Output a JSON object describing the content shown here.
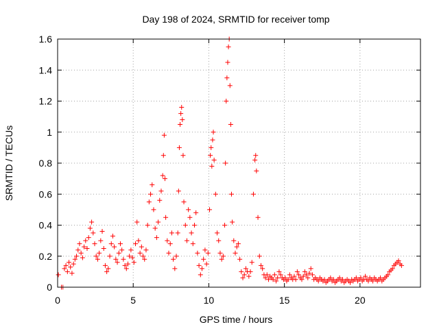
{
  "chart_data": {
    "type": "scatter",
    "title": "Day 198 of 2024, SRMTID for receiver tomp",
    "xlabel": "GPS time / hours",
    "ylabel": "SRMTID / TECUs",
    "xlim": [
      0,
      24
    ],
    "ylim": [
      0,
      1.6
    ],
    "xticks": [
      "0",
      "5",
      "10",
      "15",
      "20"
    ],
    "yticks": [
      "0",
      "0.2",
      "0.4",
      "0.6",
      "0.8",
      "1",
      "1.2",
      "1.4",
      "1.6"
    ],
    "grid": true,
    "colors": {
      "series": "#ff0000",
      "grid": "#a0a0a0",
      "frame": "#000000"
    },
    "series": [
      {
        "name": "SRMTID",
        "marker": "plus",
        "points": [
          [
            0.05,
            0.08
          ],
          [
            0.25,
            0.0
          ],
          [
            0.35,
            0.0
          ],
          [
            0.45,
            0.12
          ],
          [
            0.55,
            0.14
          ],
          [
            0.65,
            0.1
          ],
          [
            0.75,
            0.16
          ],
          [
            0.85,
            0.13
          ],
          [
            0.95,
            0.09
          ],
          [
            1.05,
            0.15
          ],
          [
            1.15,
            0.18
          ],
          [
            1.25,
            0.2
          ],
          [
            1.35,
            0.24
          ],
          [
            1.45,
            0.28
          ],
          [
            1.55,
            0.22
          ],
          [
            1.65,
            0.19
          ],
          [
            1.75,
            0.26
          ],
          [
            1.85,
            0.3
          ],
          [
            1.95,
            0.25
          ],
          [
            2.05,
            0.32
          ],
          [
            2.15,
            0.38
          ],
          [
            2.25,
            0.42
          ],
          [
            2.35,
            0.35
          ],
          [
            2.45,
            0.28
          ],
          [
            2.55,
            0.2
          ],
          [
            2.65,
            0.18
          ],
          [
            2.75,
            0.22
          ],
          [
            2.85,
            0.3
          ],
          [
            2.95,
            0.36
          ],
          [
            3.05,
            0.25
          ],
          [
            3.15,
            0.14
          ],
          [
            3.25,
            0.1
          ],
          [
            3.35,
            0.12
          ],
          [
            3.45,
            0.2
          ],
          [
            3.55,
            0.28
          ],
          [
            3.65,
            0.33
          ],
          [
            3.75,
            0.26
          ],
          [
            3.85,
            0.18
          ],
          [
            3.95,
            0.16
          ],
          [
            4.05,
            0.22
          ],
          [
            4.15,
            0.28
          ],
          [
            4.25,
            0.24
          ],
          [
            4.35,
            0.18
          ],
          [
            4.45,
            0.14
          ],
          [
            4.55,
            0.12
          ],
          [
            4.65,
            0.15
          ],
          [
            4.75,
            0.2
          ],
          [
            4.85,
            0.24
          ],
          [
            4.95,
            0.19
          ],
          [
            5.05,
            0.16
          ],
          [
            5.15,
            0.28
          ],
          [
            5.25,
            0.42
          ],
          [
            5.35,
            0.3
          ],
          [
            5.45,
            0.22
          ],
          [
            5.55,
            0.26
          ],
          [
            5.65,
            0.2
          ],
          [
            5.75,
            0.18
          ],
          [
            5.85,
            0.24
          ],
          [
            5.95,
            0.4
          ],
          [
            6.05,
            0.55
          ],
          [
            6.15,
            0.6
          ],
          [
            6.25,
            0.66
          ],
          [
            6.35,
            0.5
          ],
          [
            6.45,
            0.38
          ],
          [
            6.55,
            0.32
          ],
          [
            6.65,
            0.42
          ],
          [
            6.75,
            0.56
          ],
          [
            6.85,
            0.62
          ],
          [
            6.95,
            0.72
          ],
          [
            7.0,
            0.85
          ],
          [
            7.05,
            0.98
          ],
          [
            7.1,
            0.7
          ],
          [
            7.15,
            0.45
          ],
          [
            7.25,
            0.3
          ],
          [
            7.35,
            0.22
          ],
          [
            7.45,
            0.28
          ],
          [
            7.55,
            0.35
          ],
          [
            7.65,
            0.18
          ],
          [
            7.75,
            0.12
          ],
          [
            7.85,
            0.2
          ],
          [
            7.95,
            0.35
          ],
          [
            8.0,
            0.62
          ],
          [
            8.05,
            0.9
          ],
          [
            8.1,
            1.05
          ],
          [
            8.15,
            1.12
          ],
          [
            8.2,
            1.16
          ],
          [
            8.25,
            1.08
          ],
          [
            8.3,
            0.85
          ],
          [
            8.35,
            0.55
          ],
          [
            8.45,
            0.4
          ],
          [
            8.55,
            0.3
          ],
          [
            8.65,
            0.5
          ],
          [
            8.75,
            0.45
          ],
          [
            8.85,
            0.35
          ],
          [
            8.95,
            0.28
          ],
          [
            9.05,
            0.4
          ],
          [
            9.15,
            0.48
          ],
          [
            9.25,
            0.22
          ],
          [
            9.35,
            0.14
          ],
          [
            9.45,
            0.08
          ],
          [
            9.55,
            0.12
          ],
          [
            9.65,
            0.18
          ],
          [
            9.75,
            0.24
          ],
          [
            9.85,
            0.15
          ],
          [
            9.95,
            0.22
          ],
          [
            10.05,
            0.5
          ],
          [
            10.1,
            0.85
          ],
          [
            10.15,
            0.9
          ],
          [
            10.2,
            0.78
          ],
          [
            10.25,
            0.95
          ],
          [
            10.3,
            1.0
          ],
          [
            10.35,
            0.82
          ],
          [
            10.45,
            0.6
          ],
          [
            10.55,
            0.35
          ],
          [
            10.65,
            0.3
          ],
          [
            10.75,
            0.22
          ],
          [
            10.85,
            0.18
          ],
          [
            10.95,
            0.2
          ],
          [
            11.05,
            0.4
          ],
          [
            11.1,
            0.8
          ],
          [
            11.15,
            1.2
          ],
          [
            11.2,
            1.35
          ],
          [
            11.25,
            1.45
          ],
          [
            11.3,
            1.55
          ],
          [
            11.35,
            1.6
          ],
          [
            11.4,
            1.3
          ],
          [
            11.45,
            1.05
          ],
          [
            11.5,
            0.6
          ],
          [
            11.55,
            0.42
          ],
          [
            11.65,
            0.3
          ],
          [
            11.75,
            0.22
          ],
          [
            11.85,
            0.26
          ],
          [
            11.95,
            0.28
          ],
          [
            12.05,
            0.18
          ],
          [
            12.15,
            0.1
          ],
          [
            12.25,
            0.06
          ],
          [
            12.35,
            0.08
          ],
          [
            12.45,
            0.12
          ],
          [
            12.55,
            0.1
          ],
          [
            12.65,
            0.07
          ],
          [
            12.75,
            0.1
          ],
          [
            12.85,
            0.16
          ],
          [
            12.95,
            0.6
          ],
          [
            13.05,
            0.82
          ],
          [
            13.1,
            0.85
          ],
          [
            13.15,
            0.75
          ],
          [
            13.25,
            0.45
          ],
          [
            13.35,
            0.2
          ],
          [
            13.45,
            0.14
          ],
          [
            13.55,
            0.12
          ],
          [
            13.65,
            0.08
          ],
          [
            13.75,
            0.06
          ],
          [
            13.85,
            0.08
          ],
          [
            13.95,
            0.05
          ],
          [
            14.05,
            0.07
          ],
          [
            14.15,
            0.06
          ],
          [
            14.25,
            0.05
          ],
          [
            14.35,
            0.08
          ],
          [
            14.45,
            0.04
          ],
          [
            14.55,
            0.06
          ],
          [
            14.65,
            0.1
          ],
          [
            14.75,
            0.08
          ],
          [
            14.85,
            0.06
          ],
          [
            14.95,
            0.05
          ],
          [
            15.05,
            0.06
          ],
          [
            15.15,
            0.04
          ],
          [
            15.25,
            0.05
          ],
          [
            15.35,
            0.08
          ],
          [
            15.45,
            0.06
          ],
          [
            15.55,
            0.05
          ],
          [
            15.65,
            0.07
          ],
          [
            15.75,
            0.05
          ],
          [
            15.85,
            0.1
          ],
          [
            15.95,
            0.08
          ],
          [
            16.05,
            0.06
          ],
          [
            16.15,
            0.05
          ],
          [
            16.25,
            0.07
          ],
          [
            16.35,
            0.1
          ],
          [
            16.45,
            0.08
          ],
          [
            16.55,
            0.06
          ],
          [
            16.65,
            0.09
          ],
          [
            16.75,
            0.12
          ],
          [
            16.85,
            0.08
          ],
          [
            16.95,
            0.05
          ],
          [
            17.05,
            0.06
          ],
          [
            17.15,
            0.05
          ],
          [
            17.25,
            0.04
          ],
          [
            17.35,
            0.06
          ],
          [
            17.45,
            0.05
          ],
          [
            17.55,
            0.04
          ],
          [
            17.65,
            0.05
          ],
          [
            17.75,
            0.03
          ],
          [
            17.85,
            0.04
          ],
          [
            17.95,
            0.05
          ],
          [
            18.05,
            0.06
          ],
          [
            18.15,
            0.04
          ],
          [
            18.25,
            0.05
          ],
          [
            18.35,
            0.03
          ],
          [
            18.45,
            0.04
          ],
          [
            18.55,
            0.05
          ],
          [
            18.65,
            0.06
          ],
          [
            18.75,
            0.04
          ],
          [
            18.85,
            0.05
          ],
          [
            18.95,
            0.03
          ],
          [
            19.05,
            0.04
          ],
          [
            19.15,
            0.05
          ],
          [
            19.25,
            0.04
          ],
          [
            19.35,
            0.03
          ],
          [
            19.45,
            0.05
          ],
          [
            19.55,
            0.04
          ],
          [
            19.65,
            0.05
          ],
          [
            19.75,
            0.06
          ],
          [
            19.85,
            0.04
          ],
          [
            19.95,
            0.05
          ],
          [
            20.05,
            0.06
          ],
          [
            20.15,
            0.04
          ],
          [
            20.25,
            0.05
          ],
          [
            20.35,
            0.07
          ],
          [
            20.45,
            0.05
          ],
          [
            20.55,
            0.04
          ],
          [
            20.65,
            0.06
          ],
          [
            20.75,
            0.05
          ],
          [
            20.85,
            0.04
          ],
          [
            20.95,
            0.06
          ],
          [
            21.05,
            0.05
          ],
          [
            21.15,
            0.04
          ],
          [
            21.25,
            0.05
          ],
          [
            21.35,
            0.06
          ],
          [
            21.45,
            0.04
          ],
          [
            21.55,
            0.05
          ],
          [
            21.65,
            0.06
          ],
          [
            21.75,
            0.07
          ],
          [
            21.85,
            0.08
          ],
          [
            21.95,
            0.1
          ],
          [
            22.05,
            0.11
          ],
          [
            22.15,
            0.12
          ],
          [
            22.25,
            0.14
          ],
          [
            22.35,
            0.15
          ],
          [
            22.45,
            0.16
          ],
          [
            22.55,
            0.17
          ],
          [
            22.65,
            0.15
          ],
          [
            22.75,
            0.14
          ]
        ]
      }
    ]
  }
}
